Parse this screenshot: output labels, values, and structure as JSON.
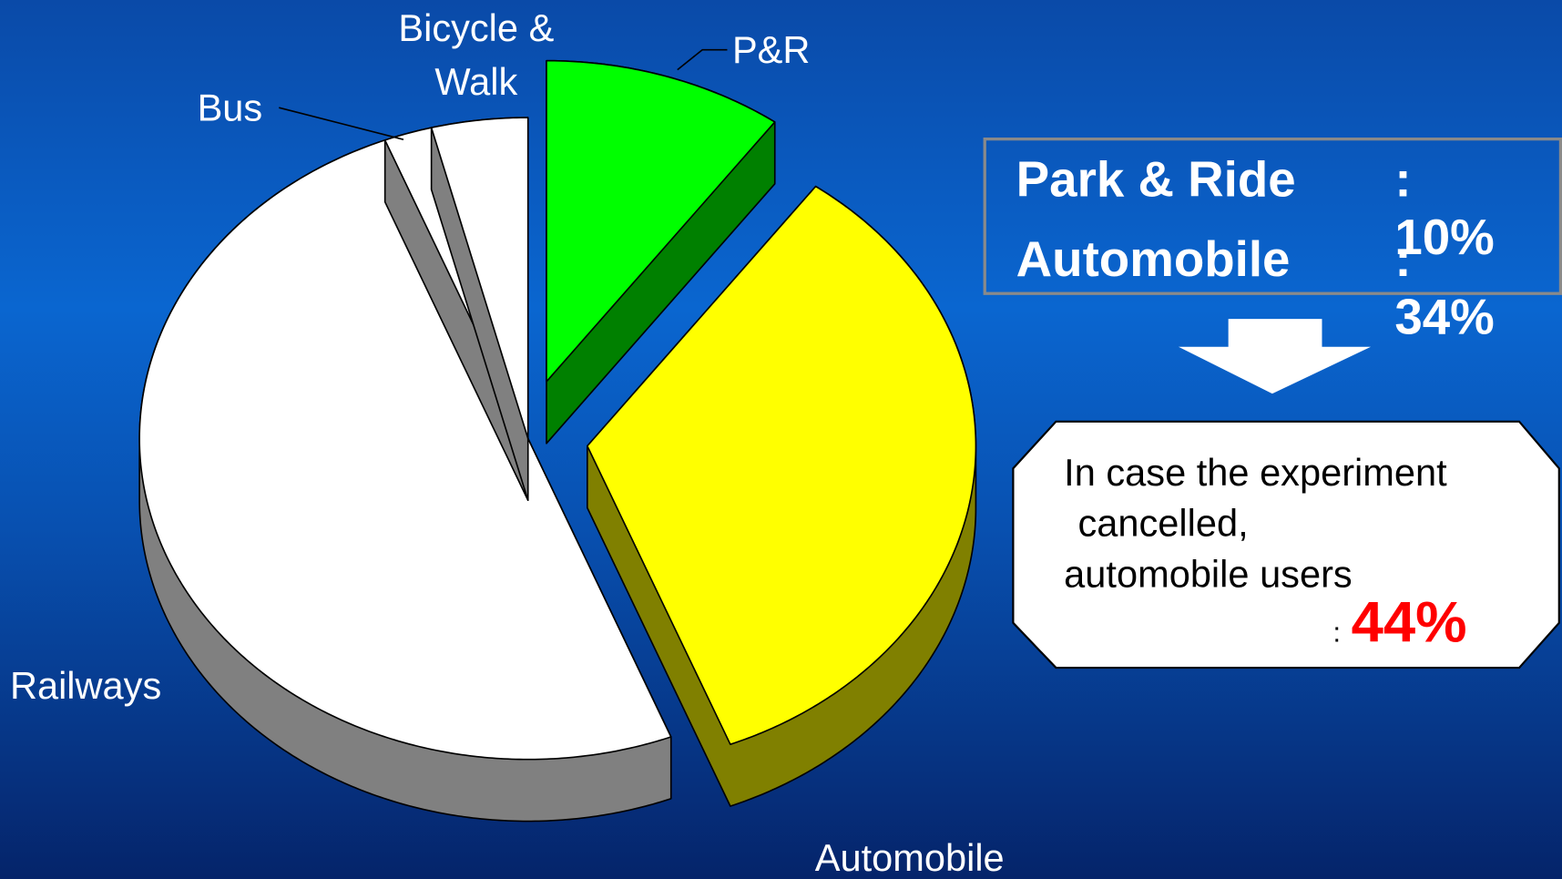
{
  "chart_data": {
    "type": "pie",
    "categories": [
      "P&R",
      "Automobile",
      "Railways",
      "Bus",
      "Bicycle & Walk"
    ],
    "values": [
      10,
      34,
      50,
      2,
      4
    ],
    "colors": [
      "#00ff00",
      "#ffff00",
      "#ffffff",
      "#ffffff",
      "#ffffff"
    ],
    "side_colors": [
      "#008000",
      "#808000",
      "#808080",
      "#808080",
      "#808080"
    ],
    "exploded": [
      true,
      true,
      false,
      false,
      false
    ]
  },
  "summary": [
    {
      "label": "Park & Ride",
      "value": ": 10%"
    },
    {
      "label": "Automobile",
      "value": ": 34%"
    }
  ],
  "note": {
    "lines": [
      "In case the experiment",
      "cancelled,",
      "automobile users"
    ],
    "prefix": ":",
    "highlight": "44%"
  }
}
